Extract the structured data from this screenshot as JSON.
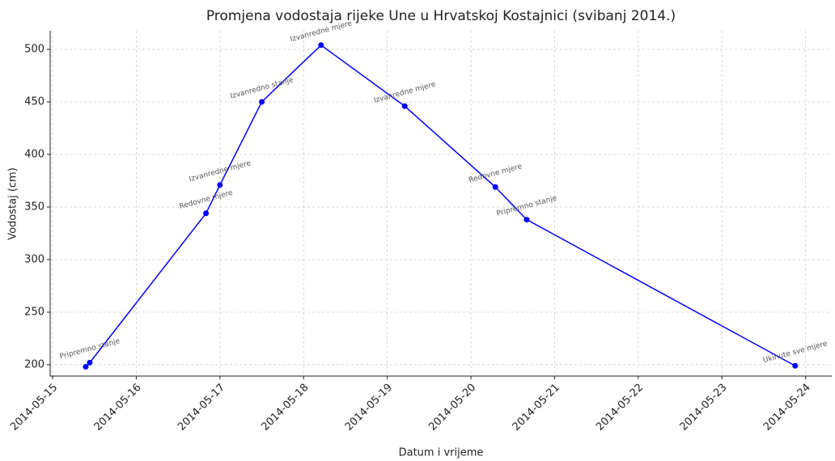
{
  "chart_data": {
    "type": "line",
    "title": "Promjena vodostaja rijeke Une u Hrvatskoj Kostajnici (svibanj 2014.)",
    "xlabel": "Datum i vrijeme",
    "ylabel": "Vodostaj (cm)",
    "series": [
      {
        "name": "Vodostaj",
        "color": "#0000ff",
        "x": [
          "2014-05-15T09:30",
          "2014-05-15T10:40",
          "2014-05-16T20:00",
          "2014-05-17T00:00",
          "2014-05-17T12:00",
          "2014-05-18T05:00",
          "2014-05-19T05:00",
          "2014-05-20T07:00",
          "2014-05-20T16:00",
          "2014-05-23T21:00"
        ],
        "values": [
          198,
          202,
          344,
          371,
          450,
          504,
          446,
          369,
          338,
          199
        ],
        "labels": [
          null,
          "Pripremno stanje",
          "Redovne mjere",
          "Izvanredne mjere",
          "Izvanredno stanje",
          "Izvanredne mjere",
          "Izvanredne mjere",
          "Redovne mjere",
          "Pripremno stanje",
          "Ukinute sve mjere"
        ]
      }
    ],
    "xlim": [
      "2014-05-14T23:18",
      "2014-05-24T07:30"
    ],
    "xticks": [
      "2014-05-15",
      "2014-05-16",
      "2014-05-17",
      "2014-05-18",
      "2014-05-19",
      "2014-05-20",
      "2014-05-21",
      "2014-05-22",
      "2014-05-23",
      "2014-05-24"
    ],
    "ylim": [
      189.2,
      517.7
    ],
    "yticks": [
      200,
      250,
      300,
      350,
      400,
      450,
      500
    ],
    "grid": true
  }
}
